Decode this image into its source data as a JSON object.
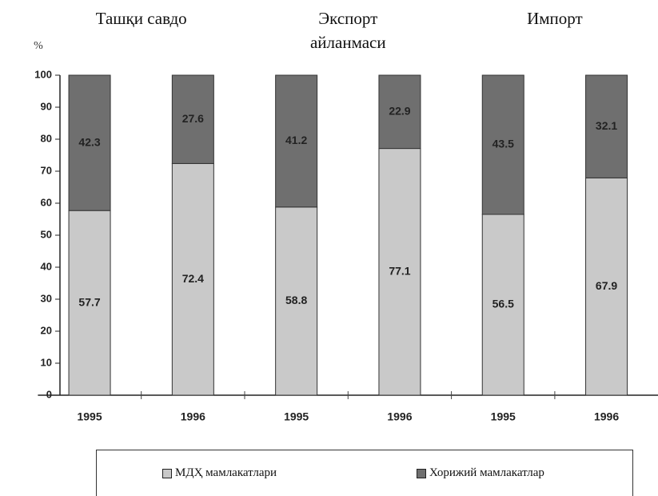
{
  "chart_data": {
    "type": "stacked_bar",
    "groups": [
      {
        "label": "Ташқи савдо",
        "span": [
          0,
          1
        ]
      },
      {
        "label": "Экспорт айланмаси",
        "span": [
          2,
          3
        ]
      },
      {
        "label": "Импорт",
        "span": [
          4,
          5
        ]
      }
    ],
    "y_label": "%",
    "categories": [
      "1995",
      "1996",
      "1995",
      "1996",
      "1995",
      "1996"
    ],
    "series": [
      {
        "name": "МДҲ мамлакатлари",
        "color": "#c9c9c9",
        "values": [
          57.7,
          72.4,
          58.8,
          77.1,
          56.5,
          67.9
        ]
      },
      {
        "name": "Хорижий мамлакатлар",
        "color": "#6f6f6f",
        "values": [
          42.3,
          27.6,
          41.2,
          22.9,
          43.5,
          32.1
        ]
      }
    ],
    "ylim": [
      0,
      100
    ],
    "yticks": [
      0,
      10,
      20,
      30,
      40,
      50,
      60,
      70,
      80,
      90,
      100
    ],
    "grid": false
  }
}
